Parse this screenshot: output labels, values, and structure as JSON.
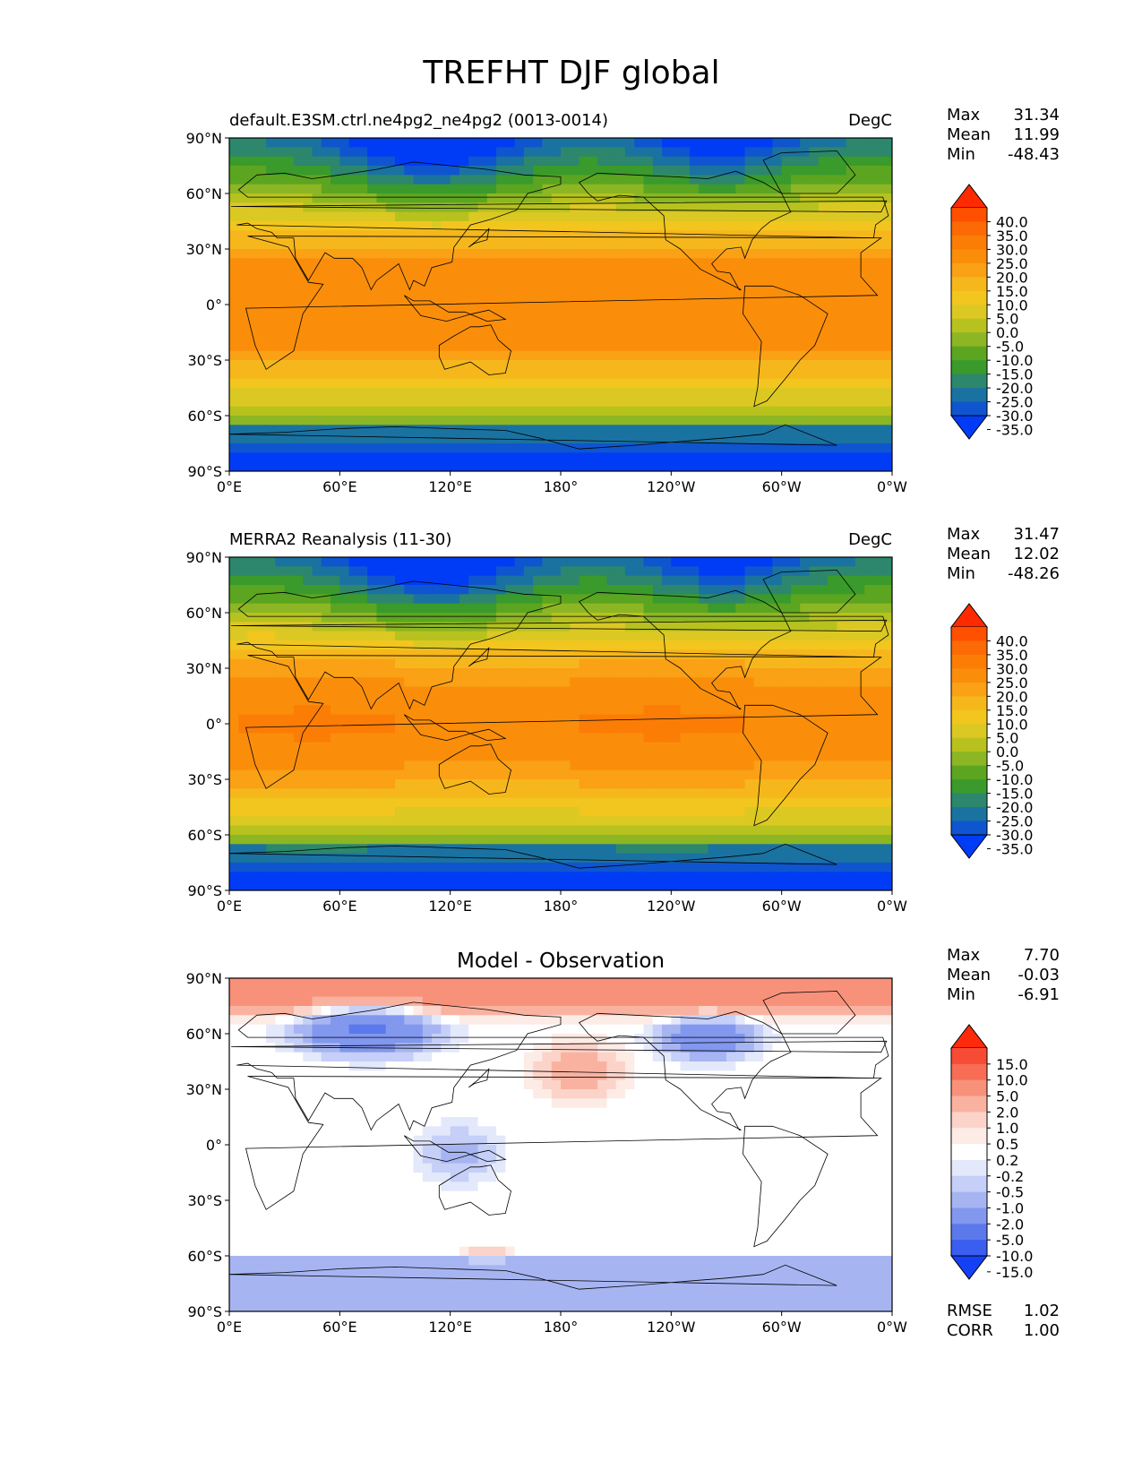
{
  "figure": {
    "title": "TREFHT DJF global"
  },
  "axes": {
    "lat_ticks": [
      "90°N",
      "60°N",
      "30°N",
      "0°",
      "30°S",
      "60°S",
      "90°S"
    ],
    "lon_ticks": [
      "0°E",
      "60°E",
      "120°E",
      "180°",
      "120°W",
      "60°W",
      "0°W"
    ]
  },
  "panels": [
    {
      "title_left": "default.E3SM.ctrl.ne4pg2_ne4pg2 (0013-0014)",
      "title_center": "",
      "units": "DegC",
      "stats": [
        {
          "label": "Max",
          "value": "31.34"
        },
        {
          "label": "Mean",
          "value": "11.99"
        },
        {
          "label": "Min",
          "value": "-48.43"
        }
      ],
      "colorbar": {
        "labels": [
          "40.0",
          "35.0",
          "30.0",
          "25.0",
          "20.0",
          "15.0",
          "10.0",
          "5.0",
          "0.0",
          "-5.0",
          "-10.0",
          "-15.0",
          "-20.0",
          "-25.0",
          "-30.0",
          "-35.0"
        ],
        "colors": [
          "#ff2a00",
          "#ff4f00",
          "#fb6a05",
          "#fb7d06",
          "#fa8e0a",
          "#faa116",
          "#f6b71c",
          "#f2c61e",
          "#dcc823",
          "#b7c21e",
          "#8cb623",
          "#5ca521",
          "#3a9a2c",
          "#2c876d",
          "#1a72a1",
          "#0f55cf",
          "#003cf5"
        ]
      },
      "field": "model",
      "stats_extra": []
    },
    {
      "title_left": "MERRA2 Reanalysis (11-30)",
      "title_center": "",
      "units": "DegC",
      "stats": [
        {
          "label": "Max",
          "value": "31.47"
        },
        {
          "label": "Mean",
          "value": "12.02"
        },
        {
          "label": "Min",
          "value": "-48.26"
        }
      ],
      "colorbar": {
        "labels": [
          "40.0",
          "35.0",
          "30.0",
          "25.0",
          "20.0",
          "15.0",
          "10.0",
          "5.0",
          "0.0",
          "-5.0",
          "-10.0",
          "-15.0",
          "-20.0",
          "-25.0",
          "-30.0",
          "-35.0"
        ],
        "colors": [
          "#ff2a00",
          "#ff4f00",
          "#fb6a05",
          "#fb7d06",
          "#fa8e0a",
          "#faa116",
          "#f6b71c",
          "#f2c61e",
          "#dcc823",
          "#b7c21e",
          "#8cb623",
          "#5ca521",
          "#3a9a2c",
          "#2c876d",
          "#1a72a1",
          "#0f55cf",
          "#003cf5"
        ]
      },
      "field": "obs",
      "stats_extra": []
    },
    {
      "title_left": "",
      "title_center": "Model - Observation",
      "units": "",
      "stats": [
        {
          "label": "Max",
          "value": "7.70"
        },
        {
          "label": "Mean",
          "value": "-0.03"
        },
        {
          "label": "Min",
          "value": "-6.91"
        }
      ],
      "colorbar": {
        "labels": [
          "15.0",
          "10.0",
          "5.0",
          "2.0",
          "1.0",
          "0.5",
          "0.2",
          "-0.2",
          "-0.5",
          "-1.0",
          "-2.0",
          "-5.0",
          "-10.0",
          "-15.0"
        ],
        "colors": [
          "#ff2a0a",
          "#f64b35",
          "#f76d55",
          "#f8917a",
          "#fab2a0",
          "#fcd3c8",
          "#fdebe6",
          "#ffffff",
          "#e3e8fb",
          "#c5cff7",
          "#a6b5f2",
          "#8297ee",
          "#5b79ea",
          "#3a5eef",
          "#1441f6"
        ]
      },
      "field": "diff",
      "stats_extra": [
        {
          "label": "RMSE",
          "value": "1.02"
        },
        {
          "label": "CORR",
          "value": "1.00"
        }
      ]
    }
  ]
}
